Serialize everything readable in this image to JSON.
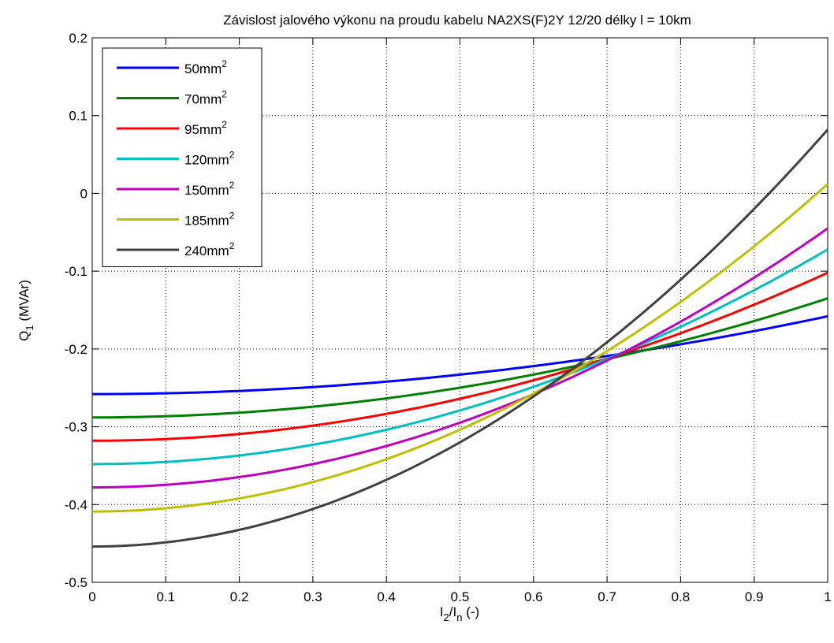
{
  "chart_data": {
    "type": "line",
    "title": "Závislost jalového výkonu na proudu kabelu NA2XS(F)2Y 12/20 délky l = 10km",
    "xlabel": {
      "main": "I",
      "sub1": "2",
      "mid": "/I",
      "sub2": "n",
      "tail": " (-)"
    },
    "ylabel": {
      "main": "Q",
      "sub": "1",
      "tail": " (MVAr)"
    },
    "xlim": [
      0,
      1
    ],
    "ylim": [
      -0.5,
      0.2
    ],
    "xticks": [
      0,
      0.1,
      0.2,
      0.3,
      0.4,
      0.5,
      0.6,
      0.7,
      0.8,
      0.9,
      1
    ],
    "xtick_labels": [
      "0",
      "0.1",
      "0.2",
      "0.3",
      "0.4",
      "0.5",
      "0.6",
      "0.7",
      "0.8",
      "0.9",
      "1"
    ],
    "yticks": [
      -0.5,
      -0.4,
      -0.3,
      -0.2,
      -0.1,
      0,
      0.1,
      0.2
    ],
    "ytick_labels": [
      "-0.5",
      "-0.4",
      "-0.3",
      "-0.2",
      "-0.1",
      "0",
      "0.1",
      "0.2"
    ],
    "grid": true,
    "legend_position": "top-left",
    "series": [
      {
        "name": "50mm",
        "sup": "2",
        "color": "#0000ff",
        "y0": -0.258,
        "y1": -0.158
      },
      {
        "name": "70mm",
        "sup": "2",
        "color": "#008000",
        "y0": -0.288,
        "y1": -0.135
      },
      {
        "name": "95mm",
        "sup": "2",
        "color": "#ff0000",
        "y0": -0.318,
        "y1": -0.102
      },
      {
        "name": "120mm",
        "sup": "2",
        "color": "#00bfbf",
        "y0": -0.348,
        "y1": -0.072
      },
      {
        "name": "150mm",
        "sup": "2",
        "color": "#bf00bf",
        "y0": -0.378,
        "y1": -0.045
      },
      {
        "name": "185mm",
        "sup": "2",
        "color": "#bfbf00",
        "y0": -0.409,
        "y1": 0.012
      },
      {
        "name": "240mm",
        "sup": "2",
        "color": "#404040",
        "y0": -0.454,
        "y1": 0.082
      }
    ]
  }
}
